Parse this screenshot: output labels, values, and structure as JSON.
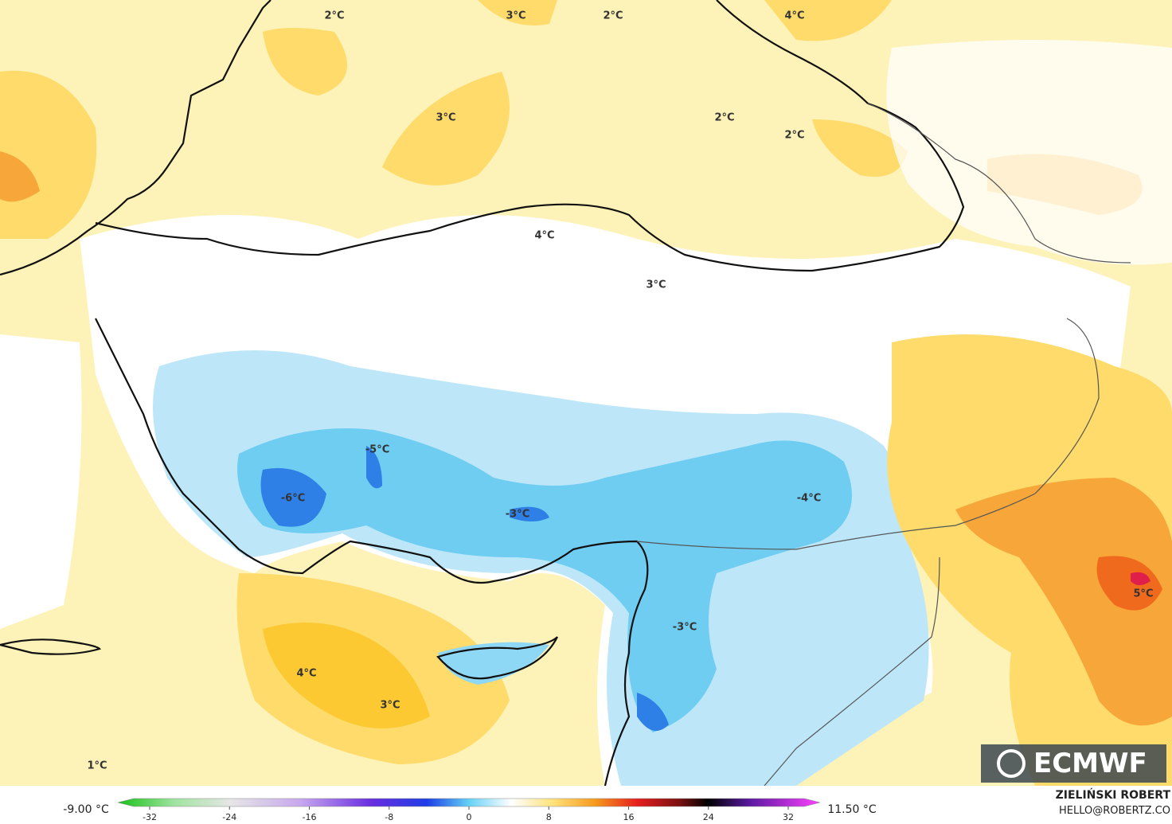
{
  "map": {
    "labels": [
      "2°C",
      "3°C",
      "2°C",
      "4°C",
      "3°C",
      "2°C",
      "2°C",
      "4°C",
      "3°C",
      "-5°C",
      "-6°C",
      "-3°C",
      "-4°C",
      "5°C",
      "-3°C",
      "4°C",
      "3°C",
      "1°C"
    ]
  },
  "colorbar": {
    "min_label": "-9.00 °C",
    "max_label": "11.50 °C",
    "ticks": [
      -32,
      -24,
      -16,
      -8,
      0,
      8,
      16,
      24,
      32
    ]
  },
  "credit": {
    "author": "ZIELIŃSKI ROBERT",
    "email": "HELLO@ROBERTZ.CO"
  },
  "logo": "ECMWF"
}
